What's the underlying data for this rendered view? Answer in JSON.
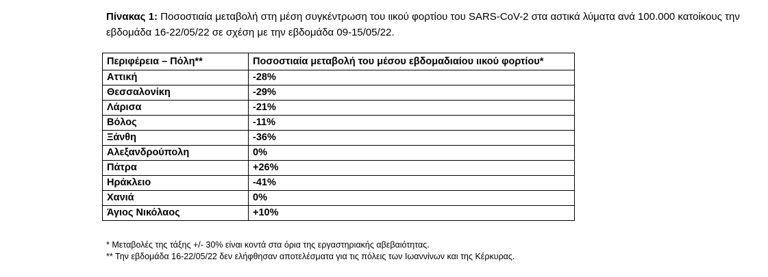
{
  "caption": {
    "label": "Πίνακας 1:",
    "text": "Ποσοστιαία μεταβολή στη μέση συγκέντρωση του ιικού φορτίου του SARS-CoV-2 στα αστικά λύματα ανά 100.000 κατοίκους την εβδομάδα 16-22/05/22 σε σχέση με την εβδομάδα 09-15/05/22."
  },
  "table": {
    "headers": [
      "Περιφέρεια – Πόλη**",
      "Ποσοστιαία μεταβολή του μέσου εβδομαδιαίου ιικού φορτίου*"
    ],
    "rows": [
      {
        "city": "Αττική",
        "change": "-28%"
      },
      {
        "city": "Θεσσαλονίκη",
        "change": "-29%"
      },
      {
        "city": "Λάρισα",
        "change": "-21%"
      },
      {
        "city": "Βόλος",
        "change": "-11%"
      },
      {
        "city": "Ξάνθη",
        "change": "-36%"
      },
      {
        "city": "Αλεξανδρούπολη",
        "change": "0%"
      },
      {
        "city": "Πάτρα",
        "change": "+26%"
      },
      {
        "city": "Ηράκλειο",
        "change": "-41%"
      },
      {
        "city": "Χανιά",
        "change": "0%"
      },
      {
        "city": "Άγιος Νικόλαος",
        "change": "+10%"
      }
    ]
  },
  "notes": [
    "* Μεταβολές της τάξης +/- 30% είναι κοντά στα όρια της εργαστηριακής αβεβαιότητας.",
    "** Την εβδομάδα 16-22/05/22 δεν ελήφθησαν αποτελέσματα για τις πόλεις των Ιωαννίνων και της Κέρκυρας."
  ]
}
